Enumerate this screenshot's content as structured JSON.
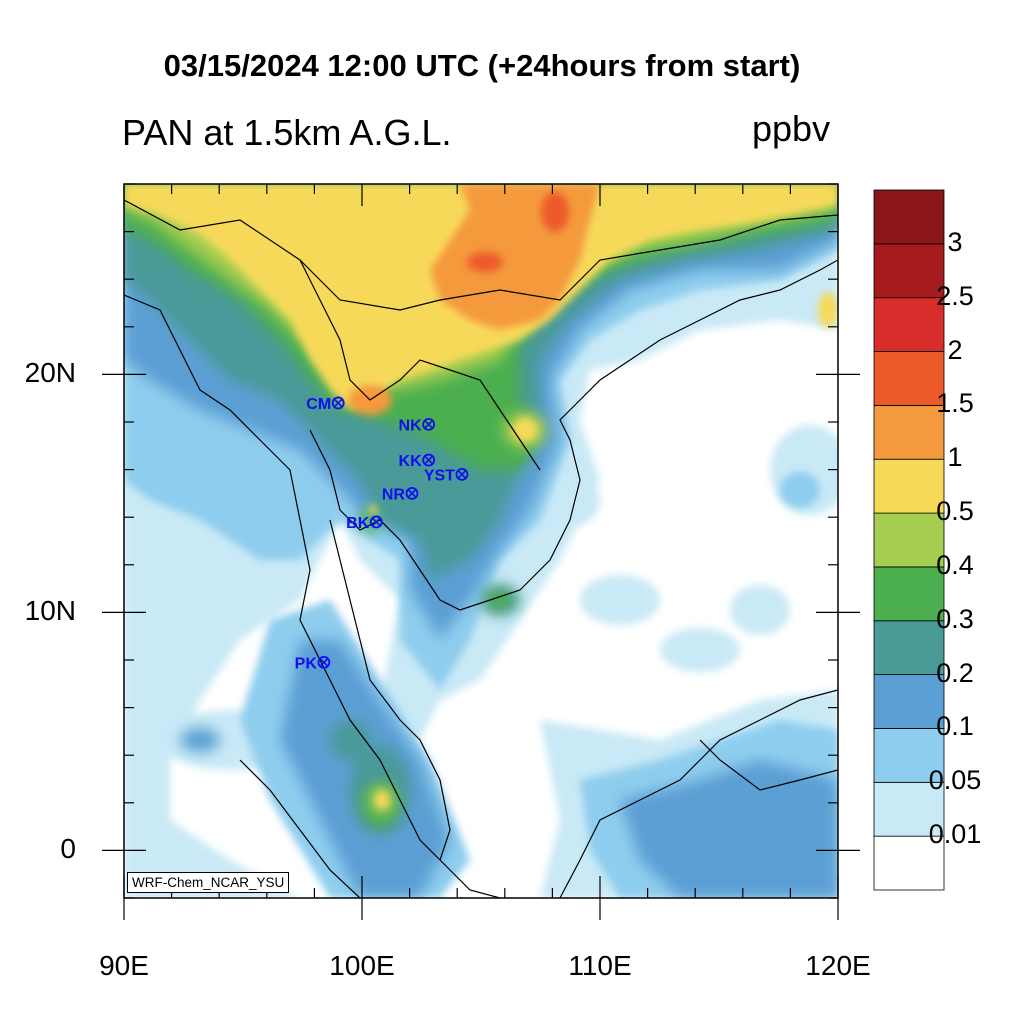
{
  "title": "03/15/2024 12:00 UTC (+24hours from start)",
  "variable": "PAN at 1.5km A.G.L.",
  "units": "ppbv",
  "model_tag": "WRF-Chem_NCAR_YSU",
  "lat_labels": [
    {
      "value": 20,
      "text": "20N"
    },
    {
      "value": 10,
      "text": "10N"
    },
    {
      "value": 0,
      "text": "0"
    }
  ],
  "lon_labels": [
    {
      "value": 90,
      "text": "90E"
    },
    {
      "value": 100,
      "text": "100E"
    },
    {
      "value": 110,
      "text": "110E"
    },
    {
      "value": 120,
      "text": "120E"
    }
  ],
  "extent": {
    "lon_min": 90,
    "lon_max": 120,
    "lat_min": -2,
    "lat_max": 28
  },
  "colorbar": {
    "levels": [
      "0.01",
      "0.05",
      "0.1",
      "0.2",
      "0.3",
      "0.4",
      "0.5",
      "1",
      "1.5",
      "2",
      "2.5",
      "3"
    ],
    "colors": [
      "#ffffff",
      "#c9e9f6",
      "#8fcdee",
      "#5b9fd4",
      "#4a9a98",
      "#4caf50",
      "#a5cd50",
      "#f7d95a",
      "#f49a3e",
      "#ec5a2a",
      "#d82d2a",
      "#a61b1d",
      "#8a1619"
    ]
  },
  "stations": [
    {
      "code": "CM",
      "lon": 99.0,
      "lat": 18.8
    },
    {
      "code": "NK",
      "lon": 102.8,
      "lat": 17.9
    },
    {
      "code": "KK",
      "lon": 102.8,
      "lat": 16.4
    },
    {
      "code": "YST",
      "lon": 104.2,
      "lat": 15.8
    },
    {
      "code": "NR",
      "lon": 102.1,
      "lat": 15.0
    },
    {
      "code": "BK",
      "lon": 100.6,
      "lat": 13.8
    },
    {
      "code": "PK",
      "lon": 98.4,
      "lat": 7.9
    }
  ]
}
